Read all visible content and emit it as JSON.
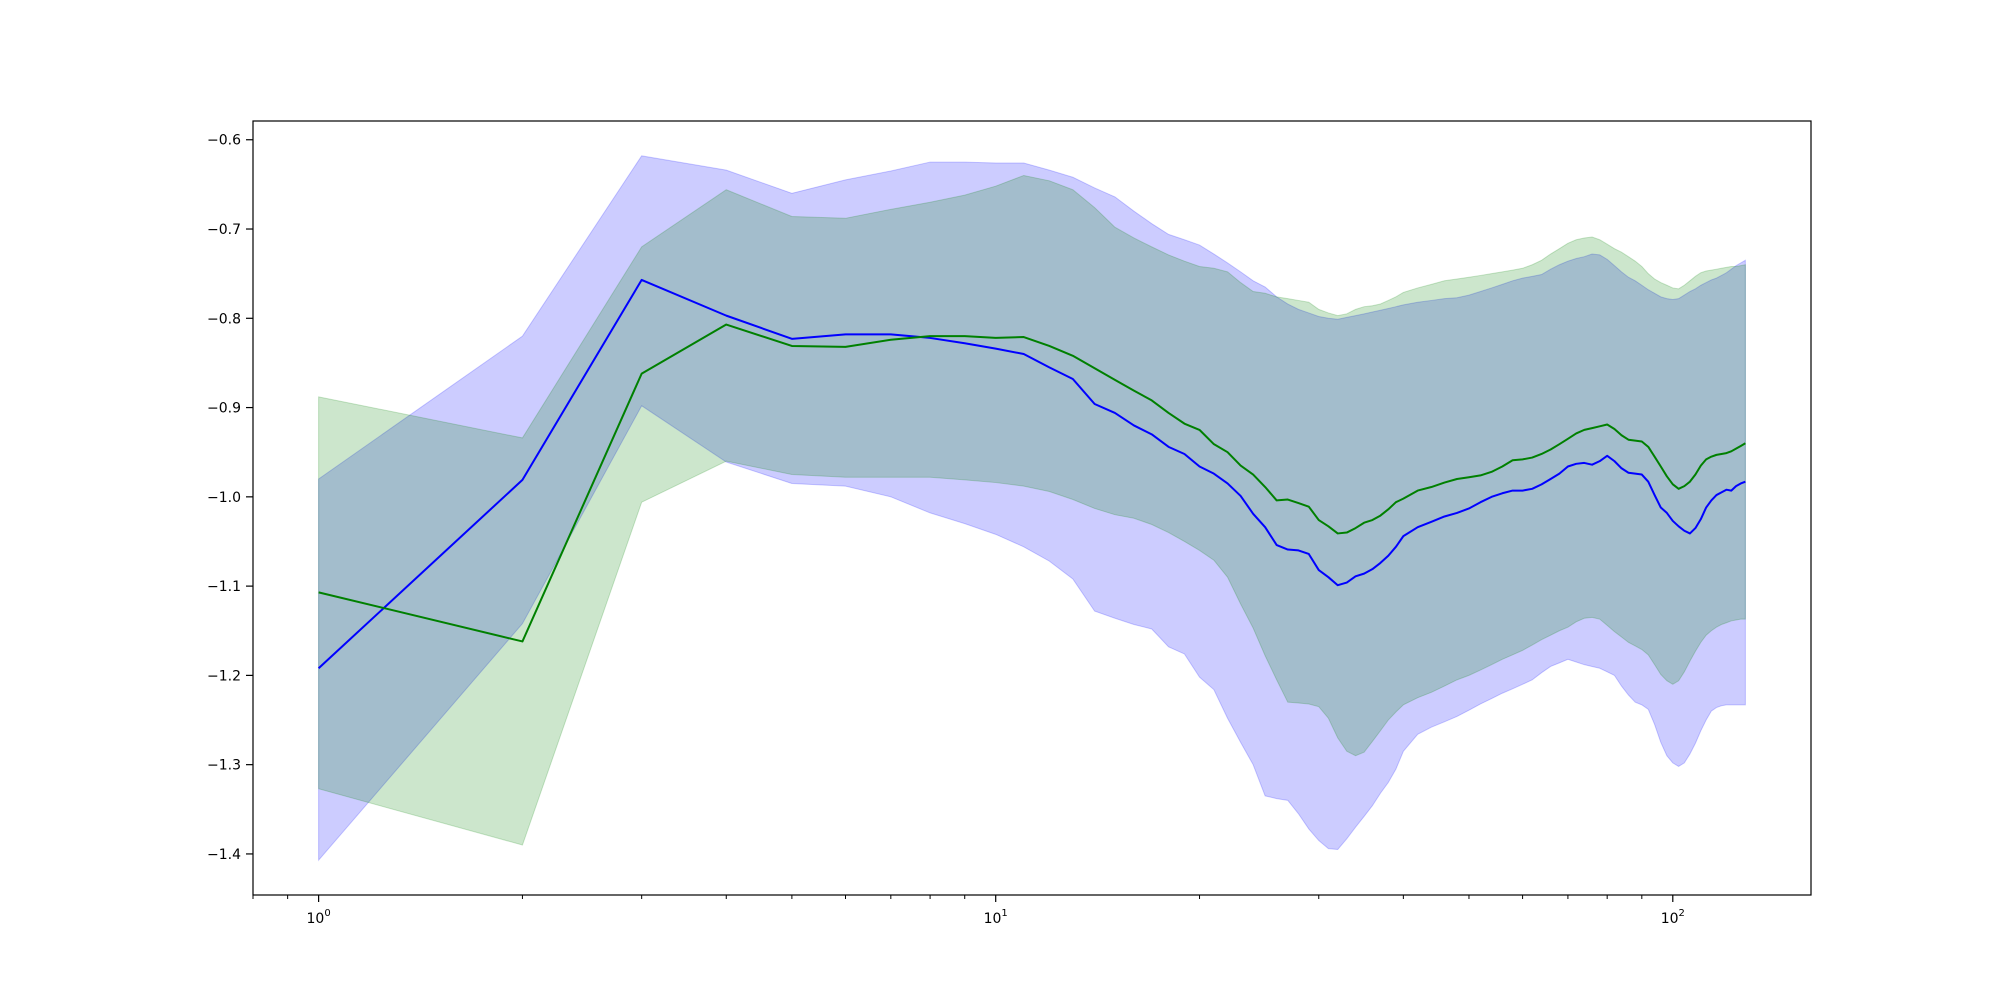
{
  "chart_data": {
    "type": "line",
    "title": "",
    "xlabel": "",
    "ylabel": "",
    "xscale": "log",
    "xlim": [
      0.8,
      160
    ],
    "ylim": [
      -1.446,
      -0.579
    ],
    "grid": false,
    "legend": "none",
    "x_ticks": [
      {
        "value": 1,
        "label": "10^0"
      },
      {
        "value": 10,
        "label": "10^1"
      },
      {
        "value": 100,
        "label": "10^2"
      }
    ],
    "y_ticks": [
      {
        "value": -0.6,
        "label": "−0.6"
      },
      {
        "value": -0.7,
        "label": "−0.7"
      },
      {
        "value": -0.8,
        "label": "−0.8"
      },
      {
        "value": -0.9,
        "label": "−0.9"
      },
      {
        "value": -1.0,
        "label": "−1.0"
      },
      {
        "value": -1.1,
        "label": "−1.1"
      },
      {
        "value": -1.2,
        "label": "−1.2"
      },
      {
        "value": -1.3,
        "label": "−1.3"
      },
      {
        "value": -1.4,
        "label": "−1.4"
      }
    ],
    "x": [
      1,
      2,
      3,
      4,
      5,
      6,
      7,
      8,
      9,
      10,
      11,
      12,
      13,
      14,
      15,
      16,
      17,
      18,
      19,
      20,
      21,
      22,
      23,
      24,
      25,
      26,
      27,
      28,
      29,
      30,
      31,
      32,
      33,
      34,
      35,
      36,
      37,
      38,
      39,
      40,
      42,
      44,
      46,
      48,
      50,
      52,
      54,
      56,
      58,
      60,
      62,
      64,
      66,
      68,
      70,
      72,
      74,
      76,
      78,
      80,
      82,
      84,
      86,
      88,
      90,
      92,
      94,
      96,
      98,
      100,
      102,
      104,
      106,
      108,
      110,
      112,
      114,
      116,
      118,
      120,
      122,
      124,
      126,
      128
    ],
    "series": [
      {
        "color": "#0000ff",
        "fill_color": "#0000ff",
        "fill_opacity": 0.2,
        "values": [
          -1.192,
          -0.981,
          -0.757,
          -0.797,
          -0.823,
          -0.818,
          -0.818,
          -0.822,
          -0.828,
          -0.834,
          -0.84,
          -0.855,
          -0.868,
          -0.896,
          -0.906,
          -0.92,
          -0.93,
          -0.944,
          -0.952,
          -0.966,
          -0.974,
          -0.985,
          -0.999,
          -1.019,
          -1.034,
          -1.054,
          -1.059,
          -1.06,
          -1.064,
          -1.082,
          -1.09,
          -1.099,
          -1.096,
          -1.089,
          -1.086,
          -1.081,
          -1.074,
          -1.066,
          -1.056,
          -1.044,
          -1.034,
          -1.028,
          -1.022,
          -1.018,
          -1.013,
          -1.006,
          -1.0,
          -0.996,
          -0.993,
          -0.993,
          -0.991,
          -0.986,
          -0.98,
          -0.974,
          -0.966,
          -0.963,
          -0.962,
          -0.964,
          -0.96,
          -0.954,
          -0.96,
          -0.968,
          -0.973,
          -0.974,
          -0.975,
          -0.983,
          -0.998,
          -1.012,
          -1.018,
          -1.027,
          -1.033,
          -1.038,
          -1.041,
          -1.035,
          -1.025,
          -1.012,
          -1.004,
          -0.998,
          -0.995,
          -0.992,
          -0.993,
          -0.988,
          -0.985,
          -0.983
        ],
        "lower": [
          -1.407,
          -1.142,
          -0.898,
          -0.961,
          -0.985,
          -0.988,
          -1.0,
          -1.018,
          -1.03,
          -1.042,
          -1.056,
          -1.072,
          -1.092,
          -1.128,
          -1.136,
          -1.143,
          -1.148,
          -1.168,
          -1.176,
          -1.202,
          -1.216,
          -1.248,
          -1.275,
          -1.3,
          -1.335,
          -1.338,
          -1.34,
          -1.355,
          -1.372,
          -1.385,
          -1.394,
          -1.395,
          -1.383,
          -1.37,
          -1.358,
          -1.346,
          -1.332,
          -1.32,
          -1.305,
          -1.285,
          -1.266,
          -1.258,
          -1.252,
          -1.246,
          -1.239,
          -1.232,
          -1.226,
          -1.22,
          -1.215,
          -1.21,
          -1.205,
          -1.197,
          -1.19,
          -1.186,
          -1.182,
          -1.185,
          -1.188,
          -1.19,
          -1.192,
          -1.196,
          -1.2,
          -1.212,
          -1.222,
          -1.23,
          -1.233,
          -1.238,
          -1.255,
          -1.275,
          -1.29,
          -1.298,
          -1.302,
          -1.298,
          -1.288,
          -1.276,
          -1.262,
          -1.25,
          -1.24,
          -1.236,
          -1.234,
          -1.233,
          -1.233,
          -1.233,
          -1.233,
          -1.233
        ],
        "upper": [
          -0.98,
          -0.82,
          -0.618,
          -0.634,
          -0.66,
          -0.645,
          -0.635,
          -0.625,
          -0.625,
          -0.626,
          -0.626,
          -0.634,
          -0.642,
          -0.654,
          -0.664,
          -0.68,
          -0.694,
          -0.706,
          -0.712,
          -0.718,
          -0.728,
          -0.738,
          -0.748,
          -0.758,
          -0.765,
          -0.776,
          -0.784,
          -0.79,
          -0.794,
          -0.798,
          -0.8,
          -0.801,
          -0.799,
          -0.797,
          -0.795,
          -0.793,
          -0.791,
          -0.789,
          -0.787,
          -0.785,
          -0.782,
          -0.78,
          -0.778,
          -0.777,
          -0.774,
          -0.77,
          -0.766,
          -0.762,
          -0.758,
          -0.755,
          -0.753,
          -0.751,
          -0.745,
          -0.74,
          -0.736,
          -0.733,
          -0.731,
          -0.728,
          -0.729,
          -0.734,
          -0.741,
          -0.748,
          -0.754,
          -0.758,
          -0.763,
          -0.768,
          -0.772,
          -0.776,
          -0.778,
          -0.779,
          -0.778,
          -0.774,
          -0.77,
          -0.767,
          -0.763,
          -0.76,
          -0.757,
          -0.755,
          -0.752,
          -0.749,
          -0.745,
          -0.741,
          -0.738,
          -0.735
        ]
      },
      {
        "color": "#008000",
        "fill_color": "#008000",
        "fill_opacity": 0.2,
        "values": [
          -1.107,
          -1.162,
          -0.862,
          -0.807,
          -0.831,
          -0.832,
          -0.824,
          -0.82,
          -0.82,
          -0.822,
          -0.821,
          -0.831,
          -0.842,
          -0.856,
          -0.869,
          -0.881,
          -0.892,
          -0.906,
          -0.918,
          -0.925,
          -0.941,
          -0.95,
          -0.965,
          -0.975,
          -0.989,
          -1.004,
          -1.003,
          -1.007,
          -1.011,
          -1.026,
          -1.033,
          -1.041,
          -1.04,
          -1.035,
          -1.029,
          -1.026,
          -1.021,
          -1.014,
          -1.006,
          -1.002,
          -0.993,
          -0.989,
          -0.984,
          -0.98,
          -0.978,
          -0.976,
          -0.972,
          -0.966,
          -0.959,
          -0.958,
          -0.956,
          -0.952,
          -0.947,
          -0.941,
          -0.935,
          -0.929,
          -0.925,
          -0.923,
          -0.921,
          -0.919,
          -0.924,
          -0.931,
          -0.936,
          -0.937,
          -0.938,
          -0.944,
          -0.955,
          -0.966,
          -0.977,
          -0.986,
          -0.991,
          -0.988,
          -0.983,
          -0.975,
          -0.965,
          -0.958,
          -0.955,
          -0.953,
          -0.952,
          -0.951,
          -0.949,
          -0.946,
          -0.943,
          -0.94
        ],
        "lower": [
          -1.327,
          -1.39,
          -1.006,
          -0.96,
          -0.975,
          -0.978,
          -0.978,
          -0.978,
          -0.981,
          -0.984,
          -0.988,
          -0.994,
          -1.003,
          -1.013,
          -1.02,
          -1.024,
          -1.031,
          -1.04,
          -1.05,
          -1.06,
          -1.071,
          -1.09,
          -1.12,
          -1.147,
          -1.178,
          -1.205,
          -1.23,
          -1.231,
          -1.232,
          -1.235,
          -1.248,
          -1.27,
          -1.285,
          -1.29,
          -1.286,
          -1.274,
          -1.262,
          -1.25,
          -1.241,
          -1.233,
          -1.225,
          -1.219,
          -1.212,
          -1.205,
          -1.2,
          -1.194,
          -1.188,
          -1.182,
          -1.177,
          -1.172,
          -1.166,
          -1.16,
          -1.155,
          -1.15,
          -1.146,
          -1.14,
          -1.136,
          -1.135,
          -1.137,
          -1.144,
          -1.151,
          -1.157,
          -1.163,
          -1.167,
          -1.171,
          -1.177,
          -1.188,
          -1.199,
          -1.206,
          -1.21,
          -1.206,
          -1.196,
          -1.184,
          -1.173,
          -1.163,
          -1.155,
          -1.15,
          -1.146,
          -1.143,
          -1.141,
          -1.139,
          -1.138,
          -1.137,
          -1.137
        ],
        "upper": [
          -0.888,
          -0.934,
          -0.72,
          -0.656,
          -0.686,
          -0.688,
          -0.678,
          -0.67,
          -0.662,
          -0.652,
          -0.64,
          -0.646,
          -0.656,
          -0.676,
          -0.698,
          -0.71,
          -0.72,
          -0.729,
          -0.736,
          -0.742,
          -0.744,
          -0.748,
          -0.76,
          -0.77,
          -0.772,
          -0.776,
          -0.778,
          -0.78,
          -0.782,
          -0.79,
          -0.794,
          -0.797,
          -0.795,
          -0.79,
          -0.787,
          -0.786,
          -0.784,
          -0.78,
          -0.776,
          -0.771,
          -0.766,
          -0.762,
          -0.758,
          -0.756,
          -0.754,
          -0.752,
          -0.75,
          -0.748,
          -0.746,
          -0.744,
          -0.74,
          -0.735,
          -0.728,
          -0.722,
          -0.716,
          -0.712,
          -0.71,
          -0.709,
          -0.712,
          -0.717,
          -0.722,
          -0.726,
          -0.731,
          -0.736,
          -0.742,
          -0.75,
          -0.756,
          -0.76,
          -0.763,
          -0.766,
          -0.767,
          -0.763,
          -0.758,
          -0.753,
          -0.749,
          -0.747,
          -0.746,
          -0.745,
          -0.744,
          -0.743,
          -0.742,
          -0.742,
          -0.741,
          -0.74
        ]
      }
    ]
  }
}
